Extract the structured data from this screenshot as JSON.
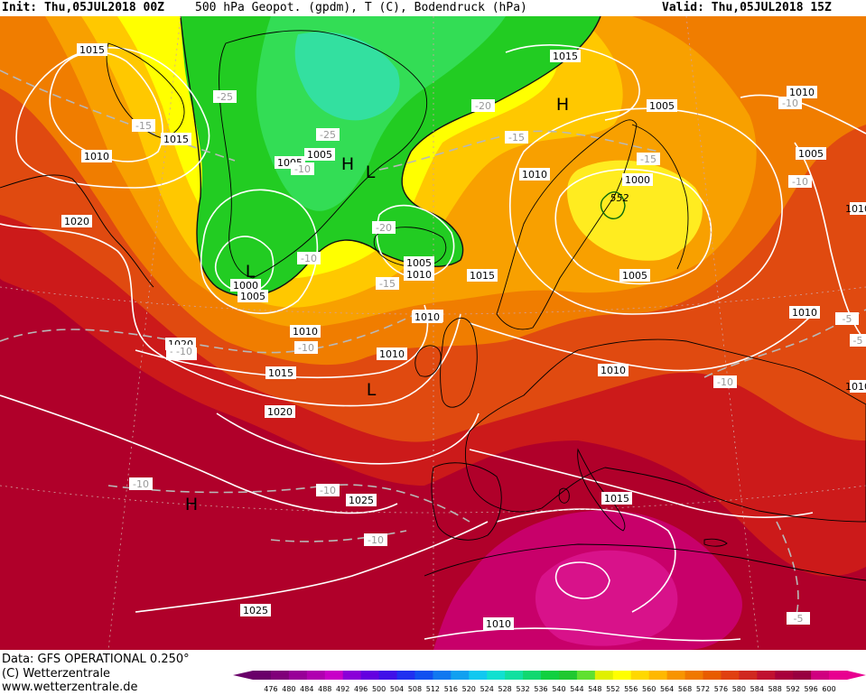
{
  "header": {
    "init": "Init: Thu,05JUL2018 00Z",
    "parameter": "500 hPa Geopot. (gpdm), T (C), Bodendruck (hPa)",
    "valid": "Valid: Thu,05JUL2018 15Z"
  },
  "footer": {
    "data_source": "Data: GFS OPERATIONAL 0.250°",
    "copyright": "(C) Wetterzentrale",
    "website": "www.wetterzentrale.de"
  },
  "legend": {
    "values": [
      "476",
      "480",
      "484",
      "488",
      "492",
      "496",
      "500",
      "504",
      "508",
      "512",
      "516",
      "520",
      "524",
      "528",
      "532",
      "536",
      "540",
      "544",
      "548",
      "552",
      "556",
      "560",
      "564",
      "568",
      "572",
      "576",
      "580",
      "584",
      "588",
      "592",
      "596",
      "600"
    ],
    "colors": [
      "#6a006a",
      "#80007a",
      "#980098",
      "#b000b0",
      "#c800c8",
      "#8a00d8",
      "#6400e0",
      "#4010e8",
      "#2030f0",
      "#1050f0",
      "#1078f0",
      "#10a0f0",
      "#10c8f0",
      "#10e0d0",
      "#10e0a0",
      "#10d870",
      "#10d040",
      "#20c830",
      "#60e030",
      "#e0f000",
      "#ffff00",
      "#ffd800",
      "#ffb800",
      "#f89400",
      "#f07800",
      "#e85c00",
      "#e04010",
      "#d02820",
      "#c01030",
      "#a8003c",
      "#980040",
      "#d00080",
      "#e80090"
    ],
    "unit": "gpdm"
  },
  "map": {
    "pressure_labels": [
      "1015",
      "1015",
      "1010",
      "1020",
      "1005",
      "1005",
      "1000",
      "1005",
      "1010",
      "1010",
      "1005",
      "1010",
      "1015",
      "1020",
      "1010",
      "1020",
      "1015",
      "1020",
      "1025",
      "1025",
      "1010",
      "1015",
      "1005",
      "1000",
      "552",
      "1005",
      "1010",
      "1010",
      "1010",
      "1010",
      "1005",
      "1010",
      "1015",
      "1015",
      "1010"
    ],
    "temperature_labels": [
      "-25",
      "-15",
      "-25",
      "-20",
      "-20",
      "-15",
      "-15",
      "-10",
      "-10",
      "-15",
      "-10",
      "-15",
      "-10",
      "-10",
      "-10",
      "-10",
      "-10",
      "-5",
      "-5",
      "-5",
      "-10",
      "-10"
    ],
    "highs": [
      "H",
      "H",
      "H"
    ],
    "lows": [
      "L",
      "L",
      "L"
    ]
  }
}
